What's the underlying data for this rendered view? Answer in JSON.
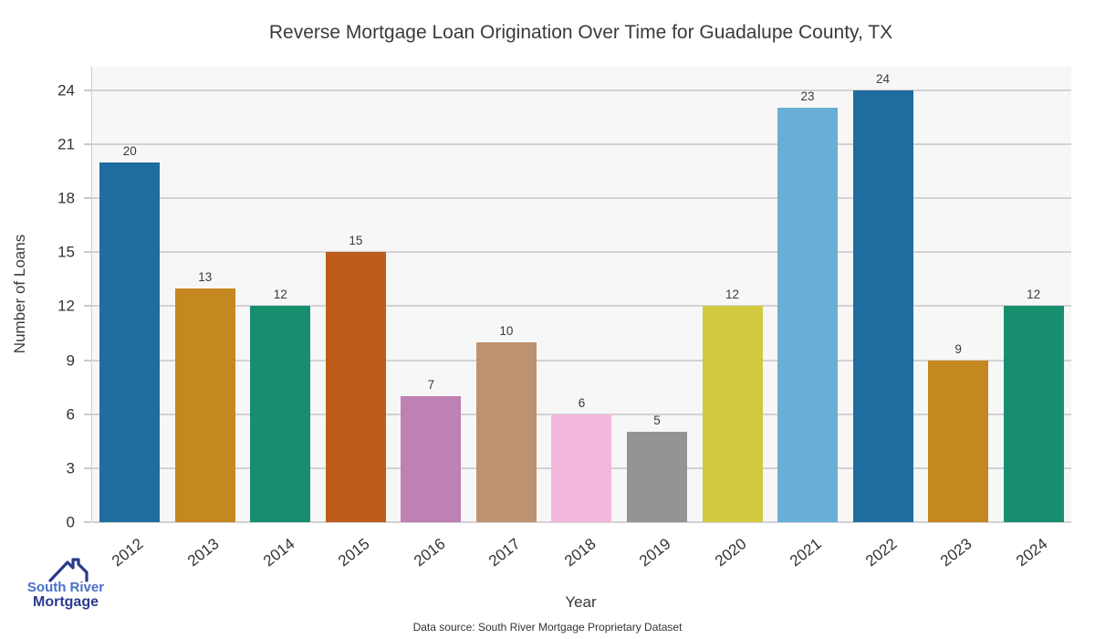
{
  "title": "Reverse Mortgage Loan Origination Over Time for Guadalupe County, TX",
  "chart_data": {
    "type": "bar",
    "title": "Reverse Mortgage Loan Origination Over Time for Guadalupe County, TX",
    "categories": [
      "2012",
      "2013",
      "2014",
      "2015",
      "2016",
      "2017",
      "2018",
      "2019",
      "2020",
      "2021",
      "2022",
      "2023",
      "2024"
    ],
    "values": [
      20,
      13,
      12,
      15,
      7,
      10,
      6,
      5,
      12,
      23,
      24,
      9,
      12
    ],
    "bar_colors": [
      "#1f6d9e",
      "#c5871f",
      "#178f6e",
      "#bd5c1b",
      "#bf80b4",
      "#bd9271",
      "#f2b8dc",
      "#949494",
      "#d2c940",
      "#69aed5",
      "#1f6d9e",
      "#c5871f",
      "#178f6e"
    ],
    "xlabel": "Year",
    "ylabel": "Number of Loans",
    "ylim": [
      0,
      25.3
    ],
    "yticks": [
      0,
      3,
      6,
      9,
      12,
      15,
      18,
      21,
      24
    ],
    "grid": true,
    "legend": "none",
    "plot_background": "#f7f7f7",
    "gridline_color": "#d2d2d5"
  },
  "footer": {
    "data_source": "Data source: South River Mortgage Proprietary Dataset"
  },
  "logo": {
    "line1": "South River",
    "line2": "Mortgage",
    "color1": "#4a6fc7",
    "color2": "#2b3a8c"
  }
}
